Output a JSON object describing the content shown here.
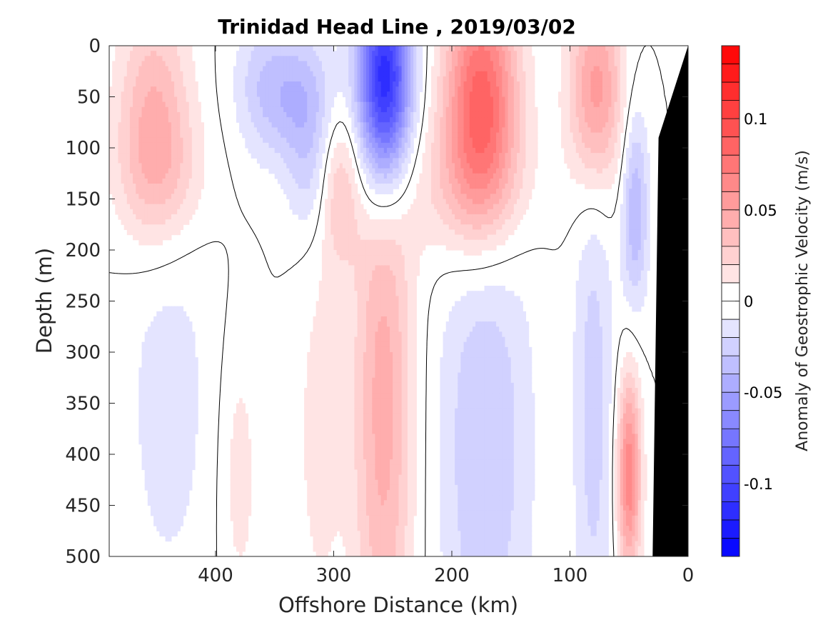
{
  "chart_data": {
    "type": "heatmap",
    "title": "Trinidad Head Line , 2019/03/02",
    "xlabel": "Offshore Distance (km)",
    "ylabel": "Depth (m)",
    "colorbar_label": "Anomaly of Geostrophic Velocity (m/s)",
    "xlim": [
      490,
      0
    ],
    "ylim": [
      0,
      500
    ],
    "x_ticks": [
      "400",
      "300",
      "200",
      "100",
      "0"
    ],
    "x_tick_values": [
      400,
      300,
      200,
      100,
      0
    ],
    "y_ticks": [
      "0",
      "50",
      "100",
      "150",
      "200",
      "250",
      "300",
      "350",
      "400",
      "450",
      "500"
    ],
    "y_tick_values": [
      0,
      50,
      100,
      150,
      200,
      250,
      300,
      350,
      400,
      450,
      500
    ],
    "colorbar": {
      "range": [
        -0.14,
        0.14
      ],
      "step": 0.01,
      "tick_labels": [
        "0.1",
        "0.05",
        "0",
        "-0.05",
        "-0.1"
      ],
      "tick_values": [
        0.1,
        0.05,
        0,
        -0.05,
        -0.1
      ],
      "positive_color": "#ff0000",
      "negative_color": "#0000ff",
      "zero_color": "#ffffff"
    },
    "colormap": "red-white-blue diverging",
    "zero_contour_color": "#000000",
    "bathymetry_color": "#000000",
    "features": [
      {
        "x": 452,
        "z": 65,
        "sx": 22,
        "sz": 80,
        "v": 0.04
      },
      {
        "x": 445,
        "z": 130,
        "sx": 28,
        "sz": 50,
        "v": 0.02
      },
      {
        "x": 360,
        "z": 40,
        "sx": 18,
        "sz": 50,
        "v": -0.025
      },
      {
        "x": 326,
        "z": 50,
        "sx": 20,
        "sz": 45,
        "v": -0.035
      },
      {
        "x": 320,
        "z": 130,
        "sx": 14,
        "sz": 45,
        "v": -0.02
      },
      {
        "x": 295,
        "z": 140,
        "sx": 12,
        "sz": 55,
        "v": 0.03
      },
      {
        "x": 257,
        "z": 35,
        "sx": 16,
        "sz": 75,
        "v": -0.13
      },
      {
        "x": 175,
        "z": 55,
        "sx": 22,
        "sz": 85,
        "v": 0.09
      },
      {
        "x": 190,
        "z": 140,
        "sx": 40,
        "sz": 50,
        "v": 0.02
      },
      {
        "x": 78,
        "z": 45,
        "sx": 16,
        "sz": 70,
        "v": 0.06
      },
      {
        "x": 45,
        "z": 160,
        "sx": 8,
        "sz": 70,
        "v": -0.04
      },
      {
        "x": 258,
        "z": 350,
        "sx": 18,
        "sz": 210,
        "v": 0.045
      },
      {
        "x": 172,
        "z": 390,
        "sx": 28,
        "sz": 190,
        "v": -0.03
      },
      {
        "x": 80,
        "z": 350,
        "sx": 12,
        "sz": 200,
        "v": -0.025
      },
      {
        "x": 440,
        "z": 340,
        "sx": 28,
        "sz": 160,
        "v": -0.015
      },
      {
        "x": 380,
        "z": 420,
        "sx": 12,
        "sz": 100,
        "v": 0.015
      },
      {
        "x": 312,
        "z": 380,
        "sx": 14,
        "sz": 130,
        "v": 0.015
      },
      {
        "x": 50,
        "z": 420,
        "sx": 7,
        "sz": 70,
        "v": 0.07
      }
    ],
    "bathymetry": [
      {
        "x": 0,
        "depth": 0
      },
      {
        "x": 25,
        "depth": 90
      },
      {
        "x": 30,
        "depth": 500
      }
    ]
  }
}
